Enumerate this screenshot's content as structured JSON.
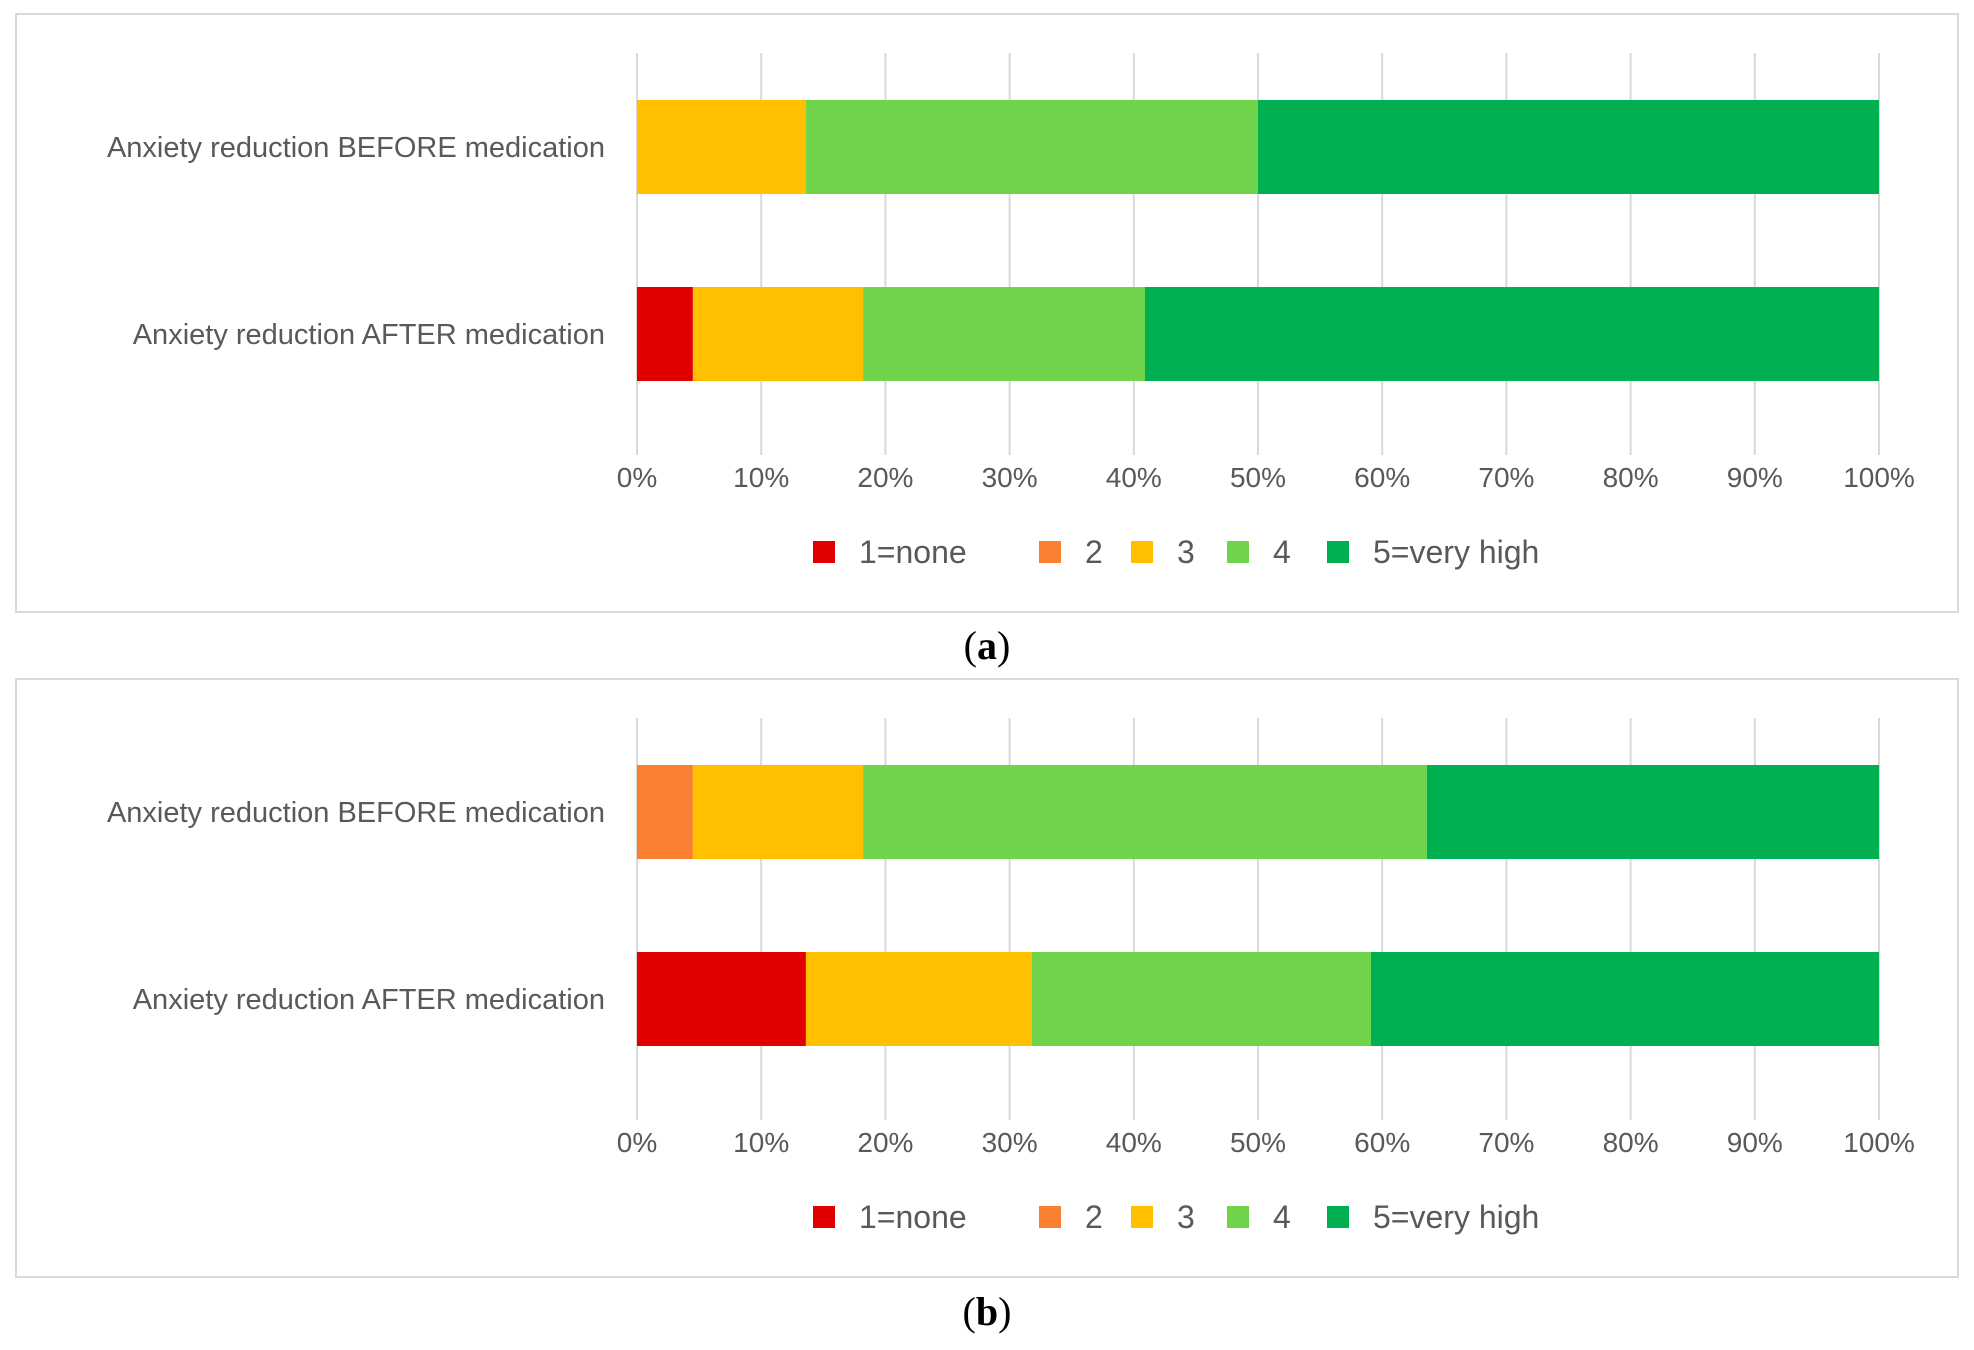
{
  "panels": [
    {
      "caption": "a",
      "chart_data": {
        "type": "bar",
        "orientation": "horizontal",
        "stacked": "percent",
        "categories": [
          "Anxiety reduction BEFORE medication",
          "Anxiety reduction AFTER medication"
        ],
        "series": [
          {
            "name": "1=none",
            "color": "#e00000",
            "values": [
              0,
              4.5
            ]
          },
          {
            "name": "2",
            "color": "#f98030",
            "values": [
              0,
              0
            ]
          },
          {
            "name": "3",
            "color": "#ffc000",
            "values": [
              13.6,
              13.7
            ]
          },
          {
            "name": "4",
            "color": "#70d44b",
            "values": [
              36.4,
              22.7
            ]
          },
          {
            "name": "5=very high",
            "color": "#00b050",
            "values": [
              50.0,
              59.1
            ]
          }
        ],
        "x_ticks": [
          "0%",
          "10%",
          "20%",
          "30%",
          "40%",
          "50%",
          "60%",
          "70%",
          "80%",
          "90%",
          "100%"
        ],
        "xlim": [
          0,
          100
        ],
        "grid": true,
        "legend": "bottom"
      }
    },
    {
      "caption": "b",
      "chart_data": {
        "type": "bar",
        "orientation": "horizontal",
        "stacked": "percent",
        "categories": [
          "Anxiety reduction BEFORE medication",
          "Anxiety reduction AFTER medication"
        ],
        "series": [
          {
            "name": "1=none",
            "color": "#e00000",
            "values": [
              0,
              13.6
            ]
          },
          {
            "name": "2",
            "color": "#f98030",
            "values": [
              4.5,
              0
            ]
          },
          {
            "name": "3",
            "color": "#ffc000",
            "values": [
              13.7,
              18.2
            ]
          },
          {
            "name": "4",
            "color": "#70d44b",
            "values": [
              45.4,
              27.3
            ]
          },
          {
            "name": "5=very high",
            "color": "#00b050",
            "values": [
              36.4,
              40.9
            ]
          }
        ],
        "x_ticks": [
          "0%",
          "10%",
          "20%",
          "30%",
          "40%",
          "50%",
          "60%",
          "70%",
          "80%",
          "90%",
          "100%"
        ],
        "xlim": [
          0,
          100
        ],
        "grid": true,
        "legend": "bottom"
      }
    }
  ]
}
